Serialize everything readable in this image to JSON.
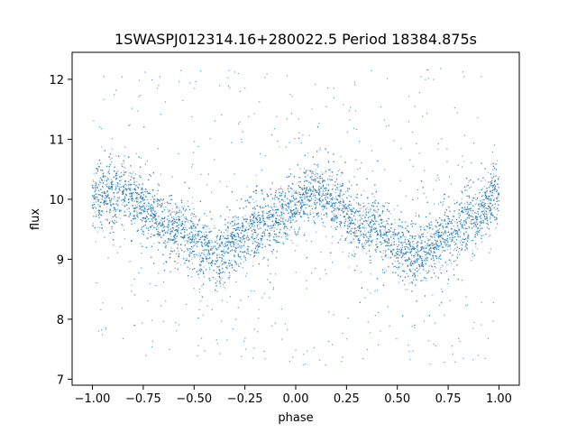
{
  "chart_data": {
    "type": "scatter",
    "title": "1SWASPJ012314.16+280022.5 Period 18384.875s",
    "xlabel": "phase",
    "ylabel": "flux",
    "xlim": [
      -1.1,
      1.1
    ],
    "ylim": [
      6.9,
      12.45
    ],
    "xticks": [
      "−1.00",
      "−0.75",
      "−0.50",
      "−0.25",
      "0.00",
      "0.25",
      "0.50",
      "0.75",
      "1.00"
    ],
    "xtick_values": [
      -1.0,
      -0.75,
      -0.5,
      -0.25,
      0.0,
      0.25,
      0.5,
      0.75,
      1.0
    ],
    "yticks": [
      "7",
      "8",
      "9",
      "10",
      "11",
      "12"
    ],
    "ytick_values": [
      7,
      8,
      9,
      10,
      11,
      12
    ],
    "grid": false,
    "marker_color": "#1f77b4",
    "series": [
      {
        "trend": {
          "phase": [
            -1.0,
            -0.85,
            -0.6,
            -0.4,
            -0.15,
            0.1,
            0.35,
            0.6,
            0.85,
            1.0
          ],
          "flux": [
            10.05,
            10.1,
            9.55,
            9.1,
            9.6,
            10.1,
            9.55,
            9.1,
            9.6,
            10.05
          ]
        },
        "scatter_width": 0.25,
        "outlier_range": [
          7.2,
          12.2
        ]
      }
    ]
  }
}
